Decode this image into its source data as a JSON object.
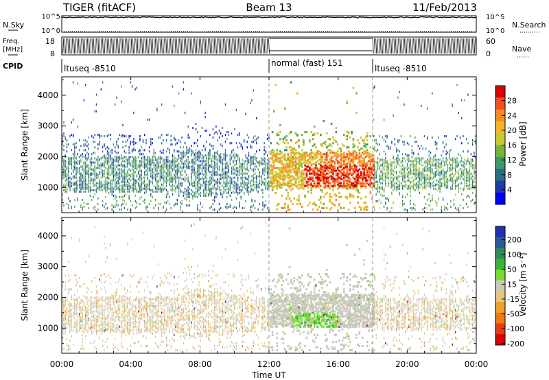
{
  "header": {
    "title_left": "TIGER (fitACF)",
    "title_center": "Beam 13",
    "title_right": "11/Feb/2013"
  },
  "nsky": {
    "label": "N.Sky",
    "ticks_left": [
      "10^5",
      "10^0"
    ],
    "ticks_right": [
      "10^5",
      "10^0"
    ],
    "right_label": "N.Search"
  },
  "freq": {
    "label_line1": "Freq.",
    "label_line2": "[MHz]",
    "ticks_left": [
      "18",
      "8"
    ],
    "ticks_right": [
      "60",
      "0"
    ],
    "right_label": "Nave"
  },
  "cpid": {
    "label": "CPID",
    "segments": [
      {
        "label": "ltuseq -8510",
        "start_hour": 0,
        "end_hour": 12
      },
      {
        "label": "normal (fast) 151",
        "start_hour": 12,
        "end_hour": 18
      },
      {
        "label": "ltuseq -8510",
        "start_hour": 18,
        "end_hour": 24
      }
    ]
  },
  "xaxis": {
    "label": "Time UT",
    "ticks": [
      "00:00",
      "04:00",
      "08:00",
      "12:00",
      "16:00",
      "20:00",
      "00:00"
    ],
    "range_hours": [
      0,
      24
    ]
  },
  "chart_data": [
    {
      "type": "heatmap",
      "name": "power",
      "ylabel": "Slant Range [km]",
      "ylim": [
        180,
        4600
      ],
      "yticks": [
        "1000",
        "2000",
        "3000",
        "4000"
      ],
      "ytick_values": [
        1000,
        2000,
        3000,
        4000
      ],
      "colorbar": {
        "label": "Power [dB]",
        "range": [
          0,
          32
        ],
        "tick_labels": [
          "4",
          "8",
          "12",
          "16",
          "20",
          "24",
          "28"
        ],
        "tick_values": [
          4,
          8,
          12,
          16,
          20,
          24,
          28
        ],
        "colors": [
          "#0000ff",
          "#1e3ca8",
          "#2a6e82",
          "#3c9a64",
          "#78b43c",
          "#c8c832",
          "#f5b428",
          "#fa8c1e",
          "#f0501e",
          "#dc0000"
        ]
      },
      "regions": [
        {
          "hours": [
            0,
            7
          ],
          "range_km": [
            800,
            2000
          ],
          "level": 10
        },
        {
          "hours": [
            7,
            12
          ],
          "range_km": [
            700,
            2200
          ],
          "level": 9
        },
        {
          "hours": [
            13,
            16.5
          ],
          "range_km": [
            900,
            2100
          ],
          "level": 22
        },
        {
          "hours": [
            14.5,
            17.5
          ],
          "range_km": [
            1500,
            2100
          ],
          "level": 18
        },
        {
          "hours": [
            18,
            24
          ],
          "range_km": [
            900,
            2000
          ],
          "level": 11
        }
      ]
    },
    {
      "type": "heatmap",
      "name": "velocity",
      "ylabel": "Slant Range [km]",
      "ylim": [
        180,
        4600
      ],
      "yticks": [
        "1000",
        "2000",
        "3000",
        "4000"
      ],
      "ytick_values": [
        1000,
        2000,
        3000,
        4000
      ],
      "colorbar": {
        "label": "Velocity [m s⁻¹]",
        "range": [
          -250,
          250
        ],
        "tick_labels": [
          "200",
          "100",
          "50",
          "15",
          "-15",
          "-50",
          "-100",
          "-200"
        ],
        "colors": [
          "#1e32b4",
          "#2a5a96",
          "#2e8c5a",
          "#3cb43c",
          "#78dc32",
          "#c8c8bc",
          "#e6c878",
          "#f0a028",
          "#f07814",
          "#e63c14",
          "#dc0000"
        ]
      },
      "regions": [
        {
          "hours": [
            0,
            12
          ],
          "range_km": [
            800,
            2000
          ],
          "level": "-15"
        },
        {
          "hours": [
            12,
            18
          ],
          "range_km": [
            1200,
            2000
          ],
          "level": "15"
        },
        {
          "hours": [
            13.5,
            16
          ],
          "range_km": [
            1000,
            1500
          ],
          "level": "50"
        },
        {
          "hours": [
            18,
            24
          ],
          "range_km": [
            900,
            2000
          ],
          "level": "-15"
        }
      ]
    }
  ]
}
